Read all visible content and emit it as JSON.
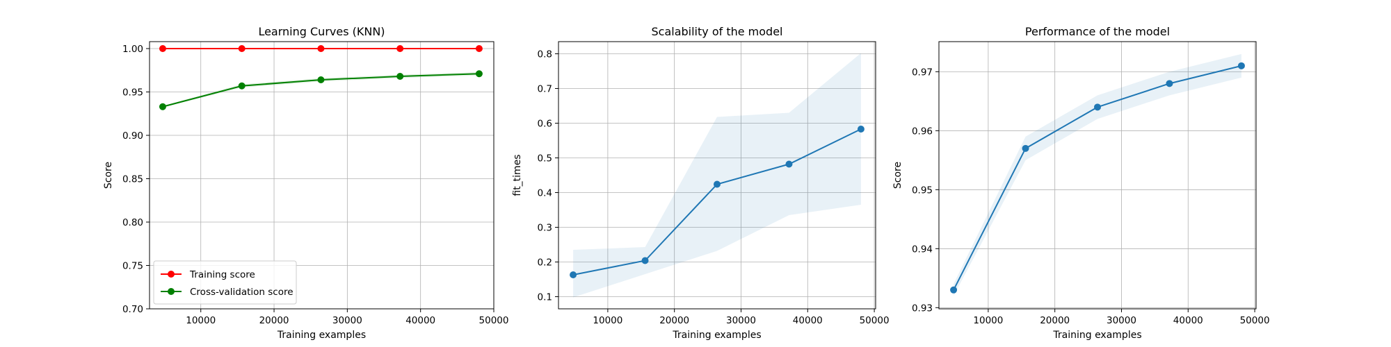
{
  "chart_data": [
    {
      "type": "line",
      "title": "Learning Curves (KNN)",
      "xlabel": "Training examples",
      "ylabel": "Score",
      "x": [
        4800,
        15600,
        26400,
        37200,
        48000
      ],
      "xlim": [
        3000,
        50000
      ],
      "ylim": [
        0.7,
        1.008
      ],
      "xticks": [
        10000,
        20000,
        30000,
        40000,
        50000
      ],
      "yticks": [
        0.7,
        0.75,
        0.8,
        0.85,
        0.9,
        0.95,
        1.0
      ],
      "ytick_labels": [
        "0.70",
        "0.75",
        "0.80",
        "0.85",
        "0.90",
        "0.95",
        "1.00"
      ],
      "grid": true,
      "legend_position": "lower-left",
      "series": [
        {
          "name": "Training score",
          "color": "#ff0000",
          "values": [
            1.0,
            1.0,
            1.0,
            1.0,
            1.0
          ],
          "band_low": [
            1.0,
            1.0,
            1.0,
            1.0,
            1.0
          ],
          "band_high": [
            1.0,
            1.0,
            1.0,
            1.0,
            1.0
          ]
        },
        {
          "name": "Cross-validation score",
          "color": "#008000",
          "values": [
            0.933,
            0.957,
            0.964,
            0.968,
            0.971
          ],
          "band_low": [
            0.932,
            0.955,
            0.962,
            0.966,
            0.969
          ],
          "band_high": [
            0.934,
            0.959,
            0.966,
            0.97,
            0.973
          ]
        }
      ]
    },
    {
      "type": "line",
      "title": "Scalability of the model",
      "xlabel": "Training examples",
      "ylabel": "fit_times",
      "x": [
        4800,
        15600,
        26400,
        37200,
        48000
      ],
      "xlim": [
        2600,
        50200
      ],
      "ylim": [
        0.065,
        0.835
      ],
      "xticks": [
        10000,
        20000,
        30000,
        40000,
        50000
      ],
      "yticks": [
        0.1,
        0.2,
        0.3,
        0.4,
        0.5,
        0.6,
        0.7,
        0.8
      ],
      "ytick_labels": [
        "0.1",
        "0.2",
        "0.3",
        "0.4",
        "0.5",
        "0.6",
        "0.7",
        "0.8"
      ],
      "grid": true,
      "series": [
        {
          "color": "#1f77b4",
          "values": [
            0.163,
            0.204,
            0.424,
            0.482,
            0.583
          ],
          "band_low": [
            0.098,
            0.165,
            0.232,
            0.335,
            0.365
          ],
          "band_high": [
            0.235,
            0.243,
            0.618,
            0.63,
            0.802
          ]
        }
      ]
    },
    {
      "type": "line",
      "title": "Performance of the model",
      "xlabel": "Training examples",
      "ylabel": "Score",
      "x": [
        4800,
        15600,
        26400,
        37200,
        48000
      ],
      "xlim": [
        2600,
        50200
      ],
      "ylim": [
        0.9298,
        0.9751
      ],
      "xticks": [
        10000,
        20000,
        30000,
        40000,
        50000
      ],
      "yticks": [
        0.93,
        0.94,
        0.95,
        0.96,
        0.97
      ],
      "ytick_labels": [
        "0.93",
        "0.94",
        "0.95",
        "0.96",
        "0.97"
      ],
      "grid": true,
      "series": [
        {
          "color": "#1f77b4",
          "values": [
            0.933,
            0.957,
            0.964,
            0.968,
            0.971
          ],
          "band_low": [
            0.932,
            0.955,
            0.962,
            0.966,
            0.969
          ],
          "band_high": [
            0.934,
            0.959,
            0.966,
            0.97,
            0.973
          ]
        }
      ]
    }
  ]
}
